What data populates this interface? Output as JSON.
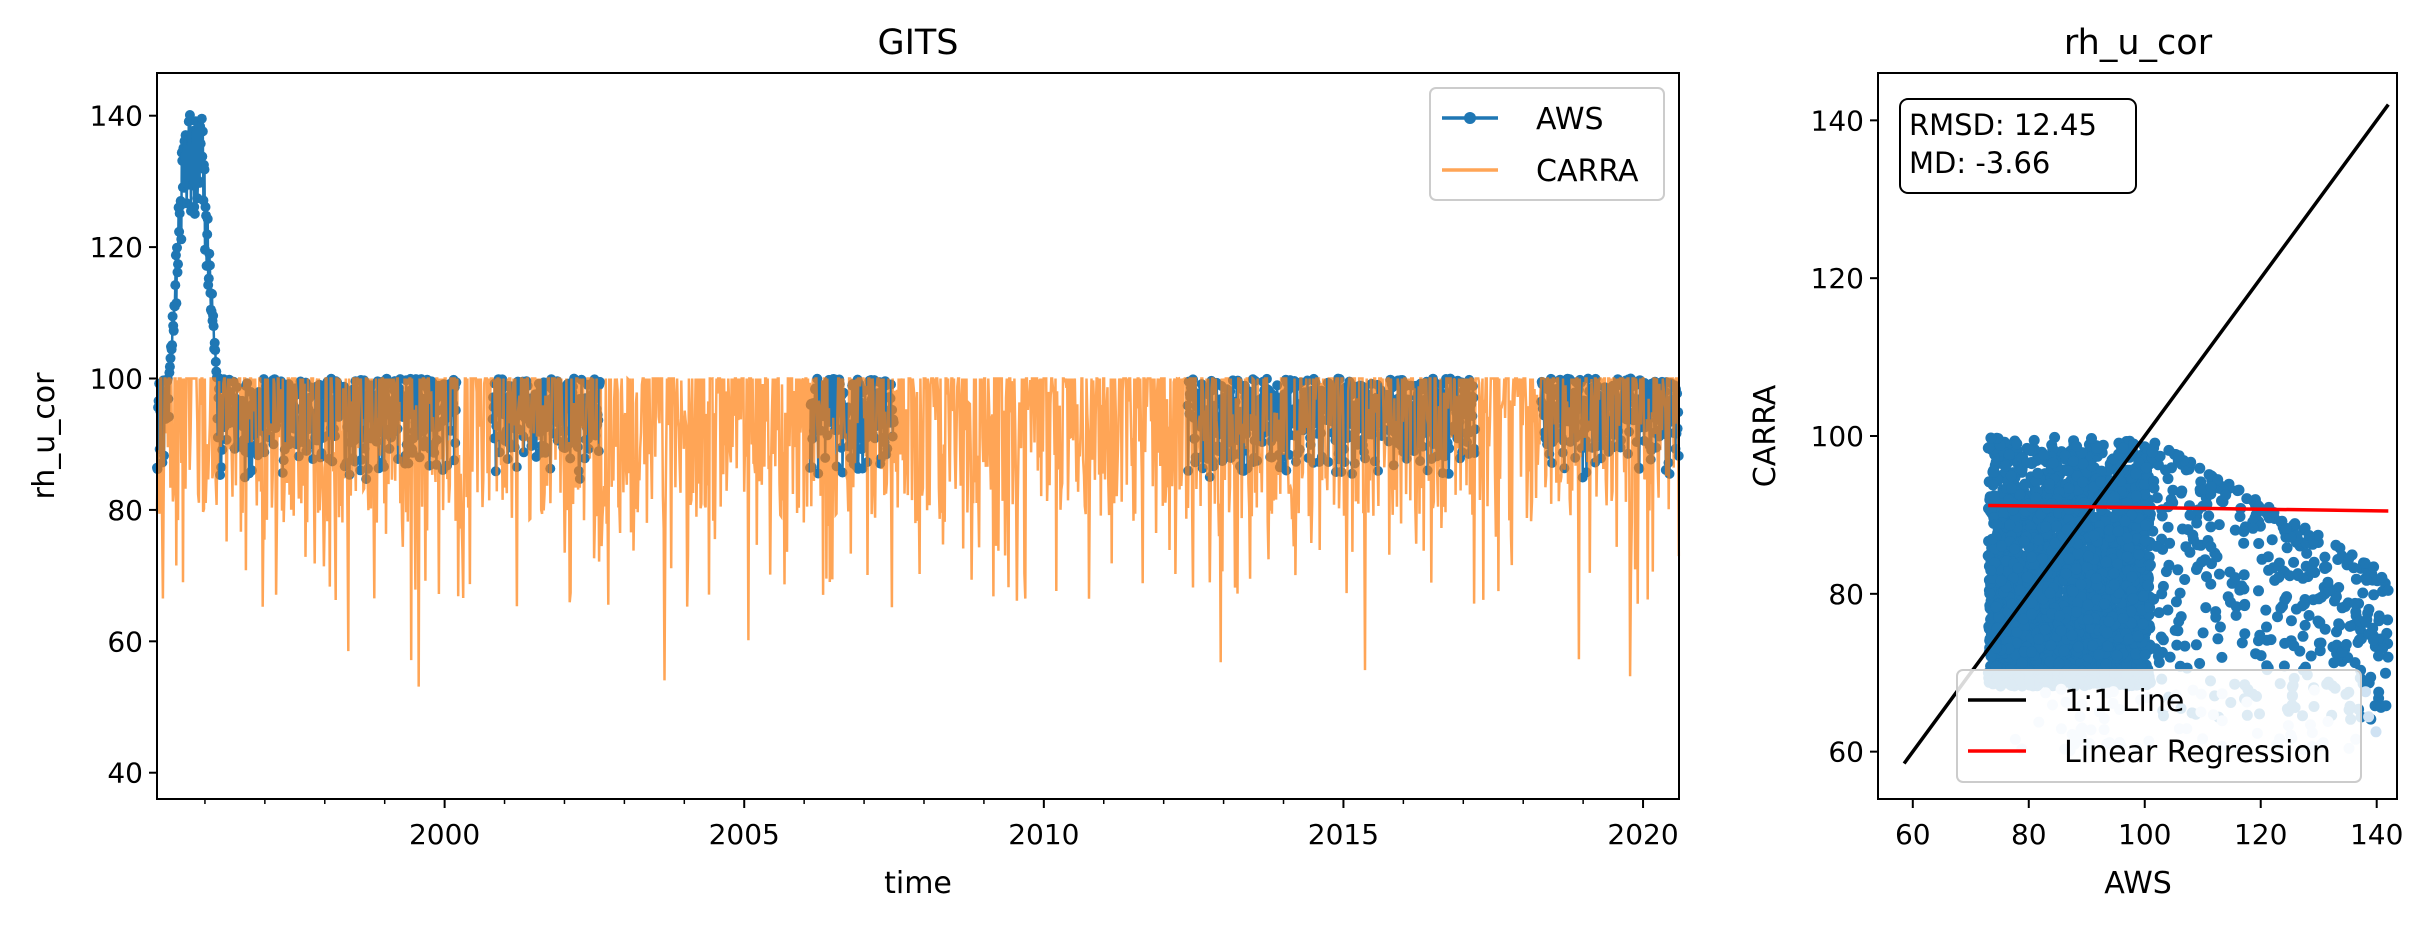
{
  "colors": {
    "aws": "#1f77b4",
    "carra": "#ff7f0e",
    "overlap": "#c57f49",
    "one_to_one": "#000000",
    "regression": "#ff0000"
  },
  "chart_data": [
    {
      "type": "line",
      "title": "GITS",
      "xlabel": "time",
      "ylabel": "rh_u_cor",
      "xlim": [
        1995.2,
        2020.6
      ],
      "ylim": [
        36,
        146.5
      ],
      "x_ticks": [
        2000,
        2005,
        2010,
        2015,
        2020
      ],
      "x_tick_labels": [
        "2000",
        "2005",
        "2010",
        "2015",
        "2020"
      ],
      "y_ticks": [
        40,
        60,
        80,
        100,
        120,
        140
      ],
      "y_tick_labels": [
        "40",
        "60",
        "80",
        "100",
        "120",
        "140"
      ],
      "grid": false,
      "legend_position": "top-right",
      "series": [
        {
          "name": "AWS",
          "style": "line with circle markers",
          "coverage": [
            [
              1995.2,
              2000.2
            ],
            [
              2000.8,
              2002.6
            ],
            [
              2006.1,
              2007.5
            ],
            [
              2012.4,
              2017.2
            ],
            [
              2018.3,
              2020.6
            ]
          ],
          "typical_range": [
            78,
            100
          ],
          "high_episode": {
            "x": [
              1995.4,
              1996.2
            ],
            "y": [
              100,
              141.5
            ]
          }
        },
        {
          "name": "CARRA",
          "style": "line",
          "x_range": [
            1995.2,
            2020.6
          ],
          "typical_range": [
            65,
            100
          ],
          "min_approx": 52.5
        }
      ]
    },
    {
      "type": "scatter",
      "title": "rh_u_cor",
      "xlabel": "AWS",
      "ylabel": "CARRA",
      "xlim": [
        54,
        143.5
      ],
      "ylim": [
        54,
        146
      ],
      "x_ticks": [
        60,
        80,
        100,
        120,
        140
      ],
      "x_tick_labels": [
        "60",
        "80",
        "100",
        "120",
        "140"
      ],
      "y_ticks": [
        60,
        80,
        100,
        120,
        140
      ],
      "y_tick_labels": [
        "60",
        "80",
        "100",
        "120",
        "140"
      ],
      "grid": false,
      "legend_position": "lower-right",
      "annotation": [
        "RMSD: 12.45",
        "MD: -3.66"
      ],
      "points": {
        "dense_cluster": {
          "x_range": [
            73,
            101
          ],
          "y_range": [
            68,
            100
          ]
        },
        "sparse_extent": {
          "x_range": [
            75,
            142
          ],
          "y_range": [
            60,
            100
          ]
        }
      },
      "lines": [
        {
          "name": "1:1 Line",
          "x": [
            58.5,
            142
          ],
          "y": [
            58.5,
            142
          ]
        },
        {
          "name": "Linear Regression",
          "x": [
            73,
            142
          ],
          "y": [
            91.2,
            90.5
          ]
        }
      ]
    }
  ]
}
